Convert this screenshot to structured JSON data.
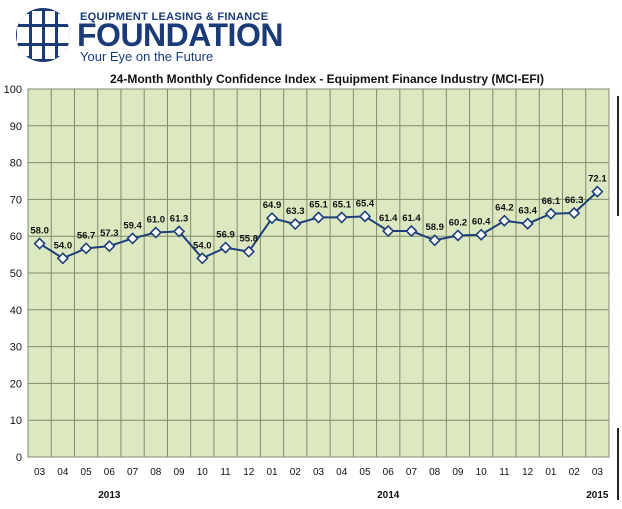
{
  "logo": {
    "top_text": "EQUIPMENT LEASING & FINANCE",
    "main_text": "FOUNDATION",
    "tagline": "Your Eye on the Future",
    "icon": "globe-icon"
  },
  "colors": {
    "plot_bg": "#dce9c0",
    "grid": "#7f8b6f",
    "line": "#1f3f7a",
    "marker_fill": "#ffffff",
    "brand": "#1a3a78"
  },
  "chart_data": {
    "type": "line",
    "title": "24-Month Monthly Confidence Index - Equipment Finance Industry (MCI-EFI)",
    "xlabel": "",
    "ylabel": "",
    "ylim": [
      0,
      100
    ],
    "yticks": [
      0,
      10,
      20,
      30,
      40,
      50,
      60,
      70,
      80,
      90,
      100
    ],
    "grid": true,
    "categories": [
      "03",
      "04",
      "05",
      "06",
      "07",
      "08",
      "09",
      "10",
      "11",
      "12",
      "01",
      "02",
      "03",
      "04",
      "05",
      "06",
      "07",
      "08",
      "09",
      "10",
      "11",
      "12",
      "01",
      "02",
      "03"
    ],
    "series": [
      {
        "name": "MCI-EFI",
        "values": [
          58.0,
          54.0,
          56.7,
          57.3,
          59.4,
          61.0,
          61.3,
          54.0,
          56.9,
          55.8,
          64.9,
          63.3,
          65.1,
          65.1,
          65.4,
          61.4,
          61.4,
          58.9,
          60.2,
          60.4,
          64.2,
          63.4,
          66.1,
          66.3,
          72.1
        ],
        "labels": [
          "58.0",
          "54.0",
          "56.7",
          "57.3",
          "59.4",
          "61.0",
          "61.3",
          "54.0",
          "56.9",
          "55.8",
          "64.9",
          "63.3",
          "65.1",
          "65.1",
          "65.4",
          "61.4",
          "61.4",
          "58.9",
          "60.2",
          "60.4",
          "64.2",
          "63.4",
          "66.1",
          "66.3",
          "72.1"
        ]
      }
    ],
    "year_labels": [
      {
        "text": "2013",
        "category_index": 3
      },
      {
        "text": "2014",
        "category_index": 15
      },
      {
        "text": "2015",
        "category_index": 24
      }
    ]
  }
}
